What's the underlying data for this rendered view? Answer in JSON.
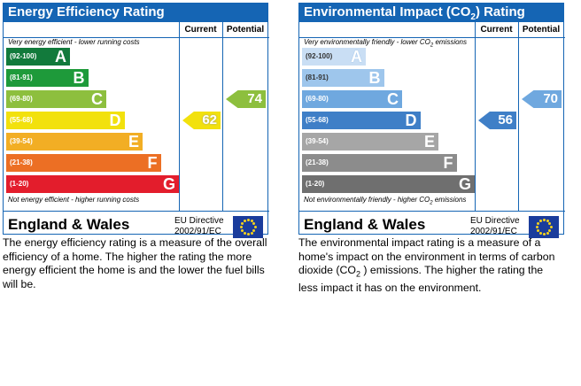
{
  "chart_data": [
    {
      "type": "bar",
      "title": "Energy Efficiency Rating",
      "columns": [
        "Current",
        "Potential"
      ],
      "top_note": "Very energy efficient - lower running costs",
      "bottom_note": "Not energy efficient - higher running costs",
      "bands": [
        {
          "range": "(92-100)",
          "letter": "A",
          "color": "#127a3c"
        },
        {
          "range": "(81-91)",
          "letter": "B",
          "color": "#1e9a3a"
        },
        {
          "range": "(69-80)",
          "letter": "C",
          "color": "#8dbf3e"
        },
        {
          "range": "(55-68)",
          "letter": "D",
          "color": "#f2e10d"
        },
        {
          "range": "(39-54)",
          "letter": "E",
          "color": "#f2ae24"
        },
        {
          "range": "(21-38)",
          "letter": "F",
          "color": "#ec6f24"
        },
        {
          "range": "(1-20)",
          "letter": "G",
          "color": "#e31d2c"
        }
      ],
      "current": {
        "value": 62,
        "label": "62",
        "band": "D",
        "color": "#f2e10d"
      },
      "potential": {
        "value": 74,
        "label": "74",
        "band": "C",
        "color": "#8dbf3e"
      },
      "country": "England & Wales",
      "directive": [
        "EU Directive",
        "2002/91/EC"
      ]
    },
    {
      "type": "bar",
      "title": "Environmental Impact (CO",
      "title_sub": "2",
      "title_end": ") Rating",
      "columns": [
        "Current",
        "Potential"
      ],
      "top_note": "Very environmentally friendly - lower CO",
      "top_note_sub": "2",
      "top_note_end": " emissions",
      "bottom_note": "Not environmentally friendly - higher CO",
      "bottom_note_sub": "2",
      "bottom_note_end": " emissions",
      "bands": [
        {
          "range": "(92-100)",
          "letter": "A",
          "color": "#c9def4"
        },
        {
          "range": "(81-91)",
          "letter": "B",
          "color": "#9ec6ec"
        },
        {
          "range": "(69-80)",
          "letter": "C",
          "color": "#6fa8df"
        },
        {
          "range": "(55-68)",
          "letter": "D",
          "color": "#3f7fc7"
        },
        {
          "range": "(39-54)",
          "letter": "E",
          "color": "#a6a6a6"
        },
        {
          "range": "(21-38)",
          "letter": "F",
          "color": "#8c8c8c"
        },
        {
          "range": "(1-20)",
          "letter": "G",
          "color": "#6f6f6f"
        }
      ],
      "current": {
        "value": 56,
        "label": "56",
        "band": "D",
        "color": "#3f7fc7"
      },
      "potential": {
        "value": 70,
        "label": "70",
        "band": "C",
        "color": "#6fa8df"
      },
      "country": "England & Wales",
      "directive": [
        "EU Directive",
        "2002/91/EC"
      ]
    }
  ],
  "descriptions": {
    "energy": "The energy efficiency rating is a measure of the overall efficiency of a home. The higher the rating the more energy efficient the home is and the lower the fuel bills will be.",
    "environment_before": "The environmental impact rating is a measure of a home's impact on the environment in terms of carbon dioxide (CO",
    "environment_sub": "2",
    "environment_after": " ) emissions. The higher the rating the less impact it has on the environment."
  }
}
